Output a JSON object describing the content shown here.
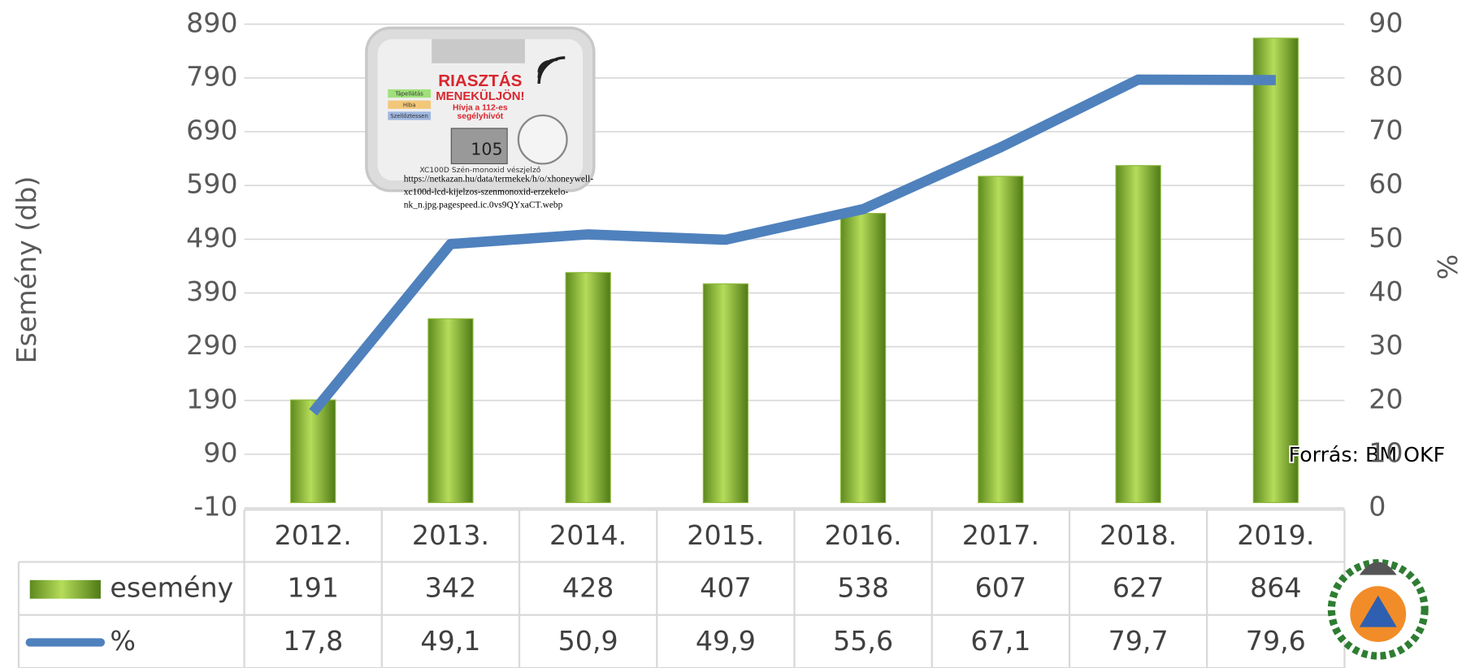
{
  "chart_data": {
    "type": "bar",
    "categories": [
      "2012.",
      "2013.",
      "2014.",
      "2015.",
      "2016.",
      "2017.",
      "2018.",
      "2019."
    ],
    "series": [
      {
        "name": "esemény",
        "color": "#8cb83a",
        "type": "bar",
        "values": [
          191,
          342,
          428,
          407,
          538,
          607,
          627,
          864
        ]
      },
      {
        "name": "%",
        "color": "#4f81bd",
        "type": "line",
        "axis": "y2",
        "values": [
          17.8,
          49.1,
          50.9,
          49.9,
          55.6,
          67.1,
          79.7,
          79.6
        ],
        "value_labels": [
          "17,8",
          "49,1",
          "50,9",
          "49,9",
          "55,6",
          "67,1",
          "79,7",
          "79,6"
        ]
      }
    ],
    "ylabel": "Esemény (db)",
    "y2label": "%",
    "ylim": [
      -10,
      890
    ],
    "yticks": [
      -10,
      90,
      190,
      290,
      390,
      490,
      590,
      690,
      790,
      890
    ],
    "y2lim": [
      0,
      90
    ],
    "y2ticks": [
      0,
      10,
      20,
      30,
      40,
      50,
      60,
      70,
      80,
      90
    ],
    "grid": true,
    "data_table": true,
    "annotation": "Forrás: BM OKF"
  },
  "image": {
    "headline": "RIASZTÁS",
    "line2": "MENEKÜLJÖN!",
    "line3": "Hívja a 112-es",
    "line4": "segélyhívót",
    "labels": [
      "Tápellátás",
      "Hiba",
      "Szellőztessen"
    ],
    "display": "105",
    "caption": "XC100D Szén-monoxid vészjelző",
    "url_lines": [
      "https://netkazan.hu/data/termekek/h/o/xhoneywell-",
      "xc100d-lcd-kijelzos-szenmonoxid-erzekelo-",
      "nk_n.jpg.pagespeed.ic.0vs9QYxaCT.webp"
    ]
  }
}
